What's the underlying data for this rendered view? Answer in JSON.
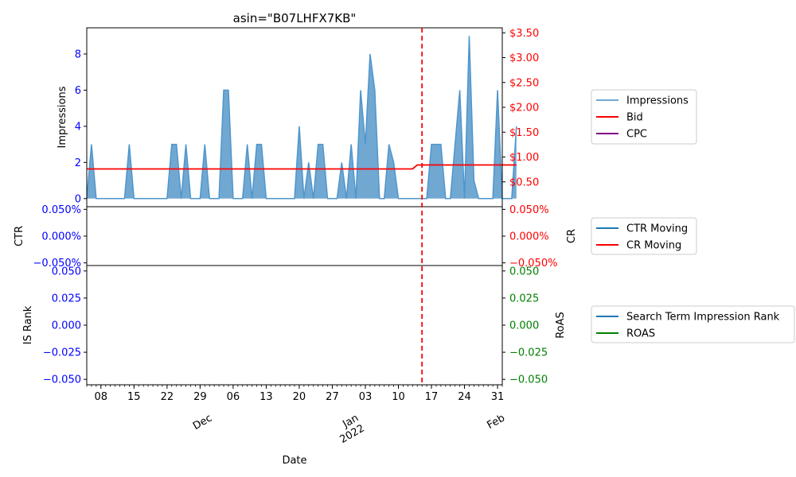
{
  "chart_data": {
    "type": "area",
    "title": "asin=\"B07LHFX7KB\"",
    "xlabel": "Date",
    "x_start": "2021-11-05",
    "x_end": "2022-02-01",
    "x_major_ticks": [
      {
        "date": "2021-11-08",
        "label": "08"
      },
      {
        "date": "2021-11-15",
        "label": "15"
      },
      {
        "date": "2021-11-22",
        "label": "22"
      },
      {
        "date": "2021-11-29",
        "label": "29"
      },
      {
        "date": "2021-12-06",
        "label": "06"
      },
      {
        "date": "2021-12-13",
        "label": "13"
      },
      {
        "date": "2021-12-20",
        "label": "20"
      },
      {
        "date": "2021-12-27",
        "label": "27"
      },
      {
        "date": "2022-01-03",
        "label": "03"
      },
      {
        "date": "2022-01-10",
        "label": "10"
      },
      {
        "date": "2022-01-17",
        "label": "17"
      },
      {
        "date": "2022-01-24",
        "label": "24"
      },
      {
        "date": "2022-01-31",
        "label": "31"
      }
    ],
    "x_month_labels": [
      {
        "date": "2021-12-01",
        "label": "Dec"
      },
      {
        "date": "2022-01-01",
        "label": "Jan\n2022"
      },
      {
        "date": "2022-02-01",
        "label": "Feb"
      }
    ],
    "vertical_marker_date": "2022-01-15",
    "panels": [
      {
        "id": "impressions",
        "ylabel": "Impressions",
        "ylim": [
          -0.45,
          9.45
        ],
        "yticks": [
          0,
          2,
          4,
          6,
          8
        ],
        "ytick_labels": [
          "0",
          "2",
          "4",
          "6",
          "8"
        ],
        "y2lim": [
          0,
          3.6
        ],
        "y2ticks": [
          0.5,
          1.0,
          1.5,
          2.0,
          2.5,
          3.0,
          3.5
        ],
        "y2tick_labels": [
          "$0.50",
          "$1.00",
          "$1.50",
          "$2.00",
          "$2.50",
          "$3.00",
          "$3.50"
        ],
        "series": [
          {
            "name": "Impressions",
            "kind": "area",
            "axis": "left",
            "values": [
              0,
              3,
              0,
              0,
              0,
              0,
              0,
              0,
              0,
              3,
              0,
              0,
              0,
              0,
              0,
              0,
              0,
              0,
              3,
              3,
              0,
              3,
              0,
              0,
              0,
              3,
              0,
              0,
              0,
              6,
              6,
              0,
              0,
              0,
              3,
              0,
              3,
              3,
              0,
              0,
              0,
              0,
              0,
              0,
              0,
              4,
              0,
              2,
              0,
              3,
              3,
              0,
              0,
              0,
              2,
              0,
              3,
              0,
              6,
              3,
              8,
              6,
              0,
              0,
              3,
              2,
              0,
              0,
              0,
              0,
              0,
              0,
              0,
              3,
              3,
              3,
              0,
              0,
              3,
              6,
              0,
              9,
              1,
              0,
              0,
              0,
              0,
              6,
              0,
              0,
              0,
              4
            ]
          },
          {
            "name": "Bid",
            "kind": "line",
            "axis": "right",
            "values": [
              0.76,
              0.76,
              0.76,
              0.76,
              0.76,
              0.76,
              0.76,
              0.76,
              0.76,
              0.76,
              0.76,
              0.76,
              0.76,
              0.76,
              0.76,
              0.76,
              0.76,
              0.76,
              0.76,
              0.76,
              0.76,
              0.76,
              0.76,
              0.76,
              0.76,
              0.76,
              0.76,
              0.76,
              0.76,
              0.76,
              0.76,
              0.76,
              0.76,
              0.76,
              0.76,
              0.76,
              0.76,
              0.76,
              0.76,
              0.76,
              0.76,
              0.76,
              0.76,
              0.76,
              0.76,
              0.76,
              0.76,
              0.76,
              0.76,
              0.76,
              0.76,
              0.76,
              0.76,
              0.76,
              0.76,
              0.76,
              0.76,
              0.76,
              0.76,
              0.76,
              0.76,
              0.76,
              0.76,
              0.76,
              0.76,
              0.76,
              0.76,
              0.76,
              0.76,
              0.76,
              0.84,
              0.84,
              0.84,
              0.84,
              0.84,
              0.84,
              0.84,
              0.84,
              0.84,
              0.84,
              0.84,
              0.84,
              0.84,
              0.84,
              0.84,
              0.84,
              0.84,
              0.84,
              0.84,
              0.84,
              0.84,
              0.84
            ]
          },
          {
            "name": "CPC",
            "kind": "line",
            "axis": "right",
            "values": []
          }
        ]
      },
      {
        "id": "ctr-cr",
        "ylabel": "CTR",
        "y2label": "CR",
        "ylim": [
          -0.055,
          0.055
        ],
        "yticks": [
          -0.05,
          0.0,
          0.05
        ],
        "ytick_labels": [
          "−0.050%",
          "0.000%",
          "0.050%"
        ],
        "y2ticks": [
          -0.05,
          0.0,
          0.05
        ],
        "y2tick_labels": [
          "−0.050%",
          "0.000%",
          "0.050%"
        ],
        "series": [
          {
            "name": "CTR Moving",
            "values": []
          },
          {
            "name": "CR Moving",
            "values": []
          }
        ]
      },
      {
        "id": "isrank-roas",
        "ylabel": "IS Rank",
        "y2label": "RoAS",
        "ylim": [
          -0.055,
          0.055
        ],
        "yticks": [
          -0.05,
          -0.025,
          0.0,
          0.025,
          0.05
        ],
        "ytick_labels": [
          "−0.050",
          "−0.025",
          "0.000",
          "0.025",
          "0.050"
        ],
        "y2ticks": [
          -0.05,
          -0.025,
          0.0,
          0.025,
          0.05
        ],
        "y2tick_labels": [
          "−0.050",
          "−0.025",
          "0.000",
          "0.025",
          "0.050"
        ],
        "series": [
          {
            "name": "Search Term Impression Rank",
            "values": []
          },
          {
            "name": "ROAS",
            "values": []
          }
        ]
      }
    ],
    "legends": [
      {
        "panel": "impressions",
        "placement": "right",
        "entries": [
          {
            "label": "Impressions",
            "color": "#6fa8d2"
          },
          {
            "label": "Bid",
            "color": "#ff0000"
          },
          {
            "label": "CPC",
            "color": "#800080"
          }
        ]
      },
      {
        "panel": "ctr-cr",
        "placement": "right",
        "entries": [
          {
            "label": "CTR Moving",
            "color": "#1f77b4"
          },
          {
            "label": "CR Moving",
            "color": "#ff0000"
          }
        ]
      },
      {
        "panel": "isrank-roas",
        "placement": "right",
        "entries": [
          {
            "label": "Search Term Impression Rank",
            "color": "#1f77b4"
          },
          {
            "label": "ROAS",
            "color": "#008000"
          }
        ]
      }
    ],
    "colors": {
      "area_fill": "#3a86c0",
      "area_line": "#4f96cc",
      "bid": "#ff0000",
      "left_ticks": "#0000ff",
      "right_ticks_price": "#ff0000",
      "right_ticks_cr": "#ff0000",
      "right_ticks_roas": "#008000",
      "marker": "#ff0000"
    }
  }
}
